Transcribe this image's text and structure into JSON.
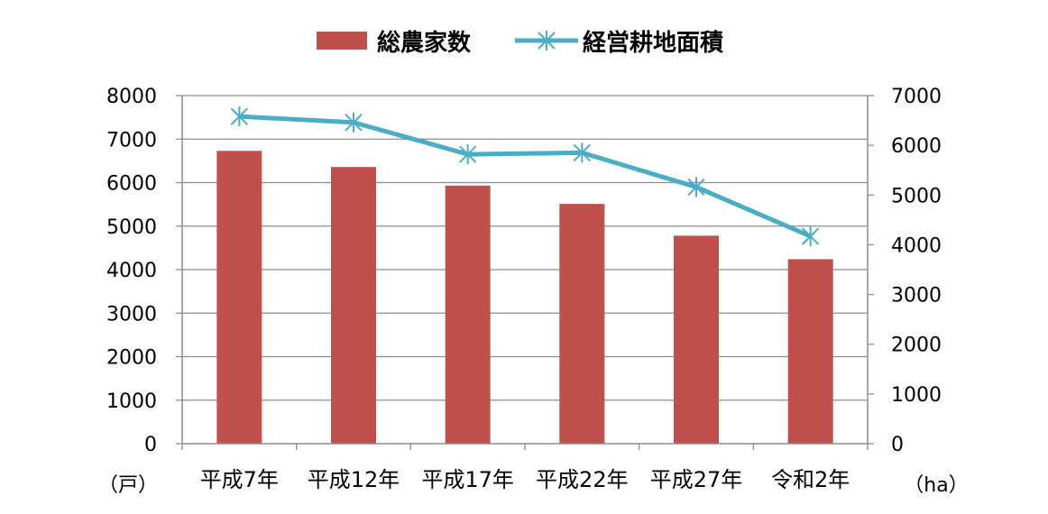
{
  "chart_data": {
    "type": "bar",
    "categories": [
      "平成7年",
      "平成12年",
      "平成17年",
      "平成22年",
      "平成27年",
      "令和2年"
    ],
    "series": [
      {
        "name": "総農家数",
        "kind": "bar",
        "axis": "left",
        "color": "#c0504d",
        "values": [
          6730,
          6360,
          5930,
          5510,
          4780,
          4240
        ]
      },
      {
        "name": "経営耕地面積",
        "kind": "line",
        "axis": "right",
        "color": "#4bacc6",
        "marker": "asterisk",
        "values": [
          6580,
          6460,
          5820,
          5850,
          5160,
          4170
        ]
      }
    ],
    "left_axis": {
      "unit": "（戸）",
      "ylim": [
        0,
        8000
      ],
      "ticks": [
        "0",
        "1000",
        "2000",
        "3000",
        "4000",
        "5000",
        "6000",
        "7000",
        "8000"
      ]
    },
    "right_axis": {
      "unit": "（ha）",
      "ylim": [
        0,
        7000
      ],
      "ticks": [
        "0",
        "1000",
        "2000",
        "3000",
        "4000",
        "5000",
        "6000",
        "7000"
      ]
    },
    "grid": true,
    "legend_position": "top"
  }
}
